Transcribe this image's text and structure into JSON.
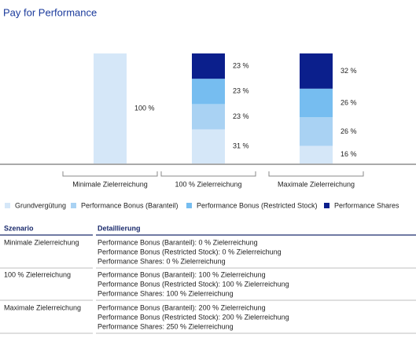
{
  "chart_data": {
    "type": "bar",
    "stacked": true,
    "title": "Pay for Performance",
    "categories": [
      "Minimale Zielerreichung",
      "100 % Zielerreichung",
      "Maximale Zielerreichung"
    ],
    "series": [
      {
        "name": "Grundvergütung",
        "color": "#d5e7f8",
        "values": [
          100,
          31,
          16
        ],
        "value_labels": [
          "100 %",
          "31 %",
          "16 %"
        ]
      },
      {
        "name": "Performance Bonus (Baranteil)",
        "color": "#a9d2f3",
        "values": [
          0,
          23,
          26
        ],
        "value_labels": [
          null,
          "23 %",
          "26 %"
        ]
      },
      {
        "name": "Performance Bonus (Restricted Stock)",
        "color": "#76bdf0",
        "values": [
          0,
          23,
          26
        ],
        "value_labels": [
          null,
          "23 %",
          "26 %"
        ]
      },
      {
        "name": "Performance Shares",
        "color": "#0b1f8c",
        "values": [
          0,
          23,
          32
        ],
        "value_labels": [
          null,
          "23 %",
          "32 %"
        ]
      }
    ],
    "legend": "bottom"
  },
  "table": {
    "header": [
      "Szenario",
      "Detaillierung"
    ],
    "rows": [
      [
        "Minimale Zielerreichung",
        [
          "Performance Bonus (Baranteil): 0 % Zielerreichung",
          "Performance Bonus (Restricted Stock): 0 % Zielerreichung",
          "Performance Shares: 0 % Zielerreichung"
        ]
      ],
      [
        "100 % Zielerreichung",
        [
          "Performance Bonus (Baranteil): 100 % Zielerreichung",
          "Performance Bonus (Restricted Stock): 100 % Zielerreichung",
          "Performance Shares: 100 % Zielerreichung"
        ]
      ],
      [
        "Maximale Zielerreichung",
        [
          "Performance Bonus (Baranteil): 200 % Zielerreichung",
          "Performance Bonus (Restricted Stock): 200 % Zielerreichung",
          "Performance Shares: 250 % Zielerreichung"
        ]
      ]
    ]
  }
}
